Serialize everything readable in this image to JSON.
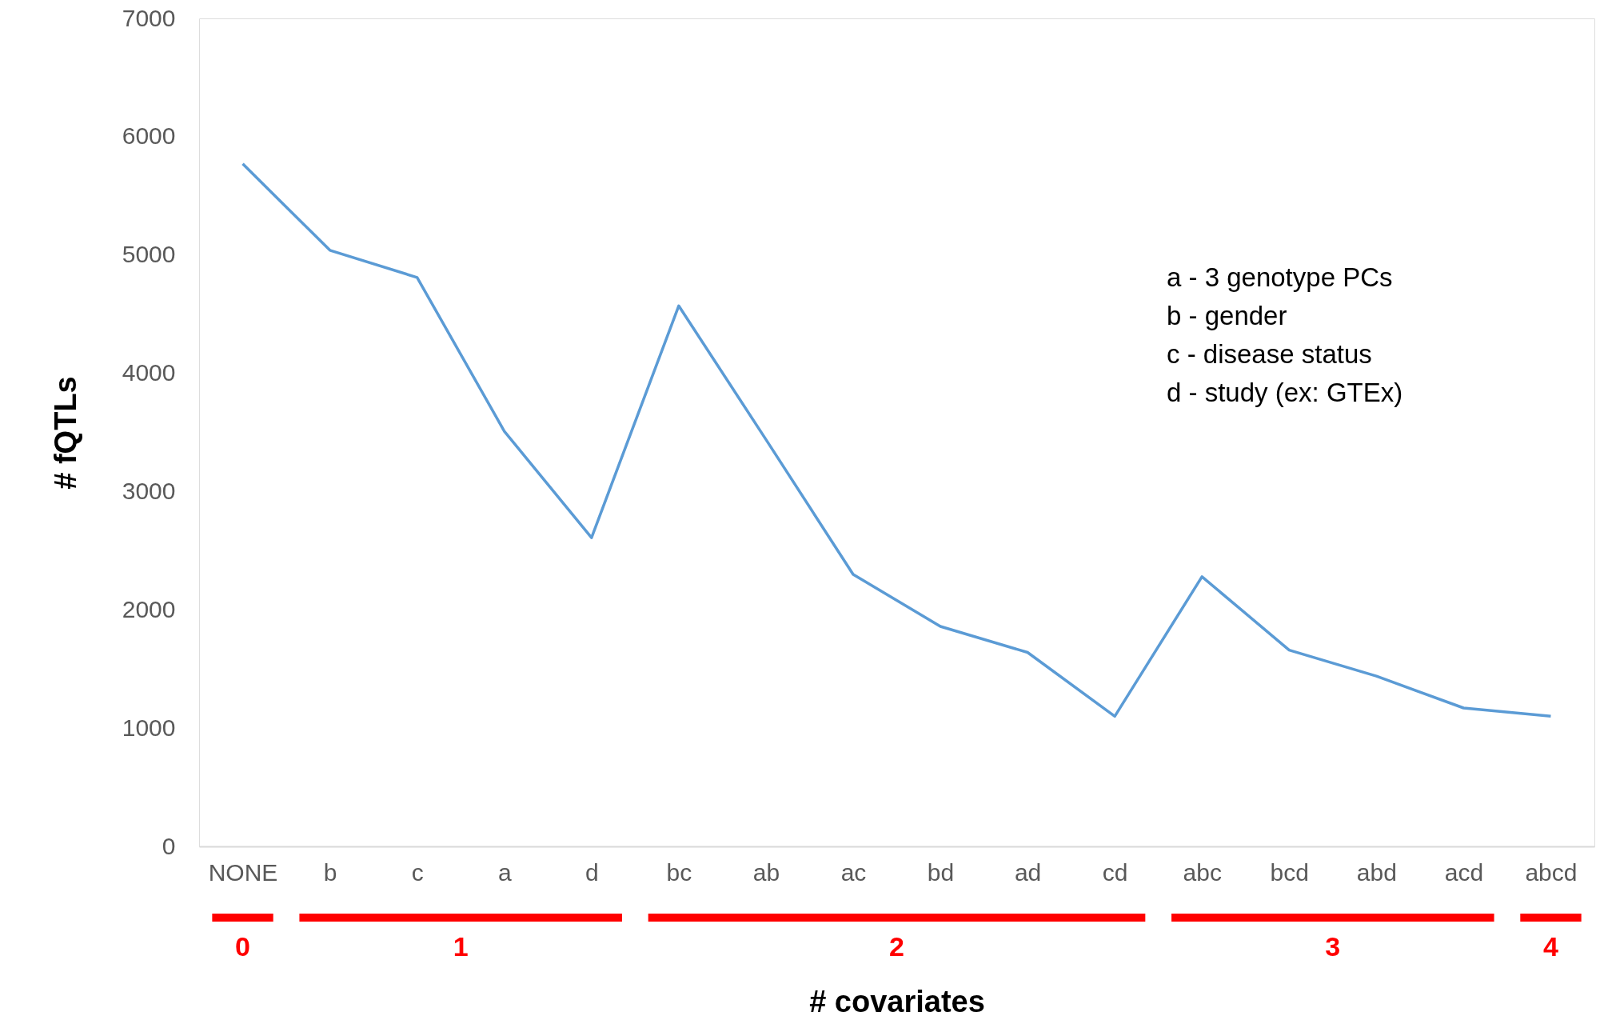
{
  "chart_data": {
    "type": "line",
    "xlabel": "# covariates",
    "ylabel": "# fQTLs",
    "categories": [
      "NONE",
      "b",
      "c",
      "a",
      "d",
      "bc",
      "ab",
      "ac",
      "bd",
      "ad",
      "cd",
      "abc",
      "bcd",
      "abd",
      "acd",
      "abcd"
    ],
    "series": [
      {
        "color": "#5b9bd5",
        "values": [
          5770,
          5040,
          4810,
          3510,
          2610,
          4570,
          3440,
          2300,
          1860,
          1640,
          1100,
          2280,
          1660,
          1440,
          1170,
          1100
        ]
      }
    ],
    "ylim": [
      0,
      7000
    ],
    "yticks": [
      0,
      1000,
      2000,
      3000,
      4000,
      5000,
      6000,
      7000
    ],
    "grid": false,
    "marker": "none",
    "line_style": "solid",
    "annotations": [
      "a - 3 genotype PCs",
      "b - gender",
      "c - disease status",
      "d - study (ex: GTEx)",
      "0",
      "1",
      "2",
      "3",
      "4"
    ]
  }
}
